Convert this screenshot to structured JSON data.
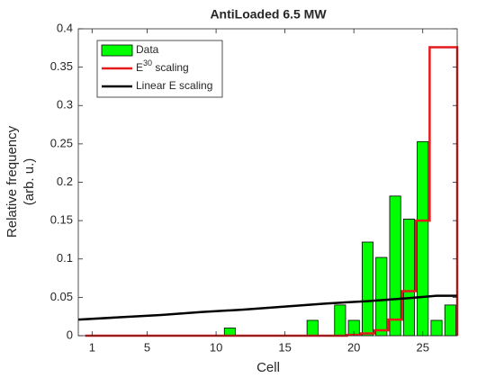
{
  "chart_data": {
    "type": "bar",
    "title": "AntiLoaded 6.5 MW",
    "xlabel": "Cell",
    "ylabel": [
      "Relative frequency",
      "(arb. u.)"
    ],
    "x": [
      1,
      2,
      3,
      4,
      5,
      6,
      7,
      8,
      9,
      10,
      11,
      12,
      13,
      14,
      15,
      16,
      17,
      18,
      19,
      20,
      21,
      22,
      23,
      24,
      25,
      26,
      27
    ],
    "xlim": [
      0,
      27.5
    ],
    "xticks": [
      1,
      5,
      10,
      15,
      20,
      25
    ],
    "ylim": [
      0,
      0.4
    ],
    "yticks": [
      0,
      0.05,
      0.1,
      0.15,
      0.2,
      0.25,
      0.3,
      0.35,
      0.4
    ],
    "legend": "upper left",
    "series": [
      {
        "name": "Data",
        "type": "bar",
        "color": "#00ff00",
        "values": [
          0,
          0,
          0,
          0,
          0,
          0,
          0,
          0,
          0,
          0,
          0.01,
          0,
          0,
          0,
          0,
          0,
          0.02,
          0,
          0.04,
          0.02,
          0.122,
          0.102,
          0.182,
          0.152,
          0.253,
          0.02,
          0.04
        ]
      },
      {
        "name": "E30 scaling",
        "type": "stairs",
        "color": "#e41a1c",
        "values": [
          0,
          0,
          0,
          0,
          0,
          0,
          0,
          0,
          0,
          0,
          0,
          0,
          0,
          0,
          0,
          0,
          0,
          0,
          0,
          0.001,
          0.003,
          0.007,
          0.021,
          0.058,
          0.15,
          0.376,
          0.376
        ]
      },
      {
        "name": "Linear E scaling",
        "type": "line",
        "color": "#000000",
        "x": [
          0,
          3,
          6,
          9,
          12,
          15,
          18,
          21,
          24,
          26,
          27.5
        ],
        "values": [
          0.021,
          0.024,
          0.027,
          0.031,
          0.034,
          0.038,
          0.042,
          0.045,
          0.049,
          0.052,
          0.052
        ]
      }
    ]
  }
}
